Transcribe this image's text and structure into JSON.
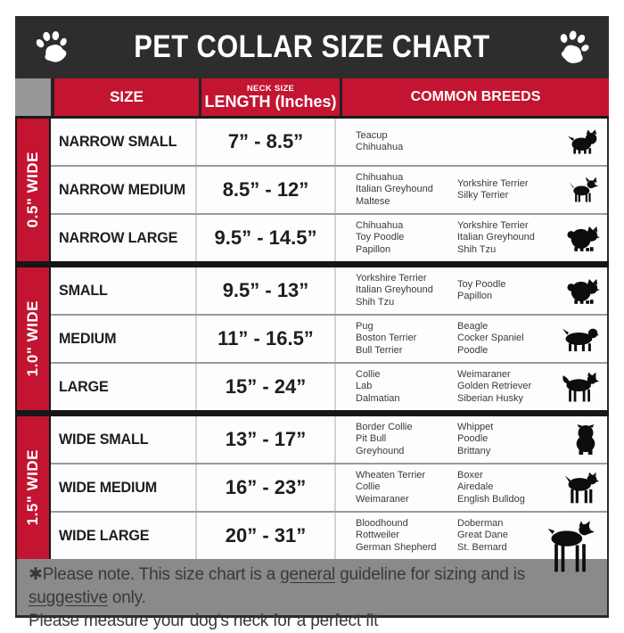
{
  "title_bar": {
    "title": "PET COLLAR SIZE CHART",
    "left_icon": "paw-icon",
    "right_icon": "paw-icon"
  },
  "table_header": {
    "size": "SIZE",
    "neck_size_small": "NECK SIZE",
    "neck_size_main": "LENGTH (Inches)",
    "breeds": "COMMON BREEDS"
  },
  "groups": [
    {
      "width_label": "0.5\" WIDE",
      "rows": [
        {
          "size": "NARROW SMALL",
          "length": "7” - 8.5”",
          "breeds_col1": [
            "Teacup",
            "Chihuahua"
          ],
          "breeds_col2": [],
          "icon": "terrier-icon"
        },
        {
          "size": "NARROW MEDIUM",
          "length": "8.5” - 12”",
          "breeds_col1": [
            "Chihuahua",
            "Italian Greyhound",
            "Maltese"
          ],
          "breeds_col2": [
            "Yorkshire Terrier",
            "Silky Terrier"
          ],
          "icon": "chihuahua-icon"
        },
        {
          "size": "NARROW LARGE",
          "length": "9.5” - 14.5”",
          "breeds_col1": [
            "Chihuahua",
            "Toy Poodle",
            "Papillon"
          ],
          "breeds_col2": [
            "Yorkshire Terrier",
            "Italian Greyhound",
            "Shih Tzu"
          ],
          "icon": "pomeranian-icon"
        }
      ]
    },
    {
      "width_label": "1.0\" WIDE",
      "rows": [
        {
          "size": "SMALL",
          "length": "9.5” - 13”",
          "breeds_col1": [
            "Yorkshire Terrier",
            "Italian Greyhound",
            "Shih Tzu"
          ],
          "breeds_col2": [
            "Toy Poodle",
            "Papillon"
          ],
          "icon": "pomeranian-icon"
        },
        {
          "size": "MEDIUM",
          "length": "11” - 16.5”",
          "breeds_col1": [
            "Pug",
            "Boston Terrier",
            "Bull Terrier"
          ],
          "breeds_col2": [
            "Beagle",
            "Cocker Spaniel",
            "Poodle"
          ],
          "icon": "spaniel-icon"
        },
        {
          "size": "LARGE",
          "length": "15” - 24”",
          "breeds_col1": [
            "Collie",
            "Lab",
            "Dalmatian"
          ],
          "breeds_col2": [
            "Weimaraner",
            "Golden Retriever",
            "Siberian Husky"
          ],
          "icon": "husky-icon"
        }
      ]
    },
    {
      "width_label": "1.5\" WIDE",
      "rows": [
        {
          "size": "WIDE SMALL",
          "length": "13” - 17”",
          "breeds_col1": [
            "Border Collie",
            "Pit Bull",
            "Greyhound"
          ],
          "breeds_col2": [
            "Whippet",
            "Poodle",
            "Brittany"
          ],
          "icon": "bulldog-front-icon"
        },
        {
          "size": "WIDE MEDIUM",
          "length": "16” - 23”",
          "breeds_col1": [
            "Wheaten Terrier",
            "Collie",
            "Weimaraner"
          ],
          "breeds_col2": [
            "Boxer",
            "Airedale",
            "English Bulldog"
          ],
          "icon": "pitbull-icon"
        },
        {
          "size": "WIDE LARGE",
          "length": "20” - 31”",
          "breeds_col1": [
            "Bloodhound",
            "Rottweiler",
            "German Shepherd"
          ],
          "breeds_col2": [
            "Doberman",
            "Great Dane",
            "St. Bernard"
          ],
          "icon": "doberman-icon"
        }
      ]
    }
  ],
  "footer": {
    "note_line1_parts": [
      {
        "text": "✱Please note. This size chart is a "
      },
      {
        "text": "general",
        "underline": true
      },
      {
        "text": " guideline for sizing and is "
      },
      {
        "text": "suggestive",
        "underline": true
      },
      {
        "text": " only."
      }
    ],
    "note_line2": "Please measure your dog's neck for a perfect fit"
  },
  "colors": {
    "accent_red": "#c31432",
    "bar_black": "#2e2c2d",
    "corner_gray": "#98989a",
    "footer_gray": "#8a8a8a"
  }
}
